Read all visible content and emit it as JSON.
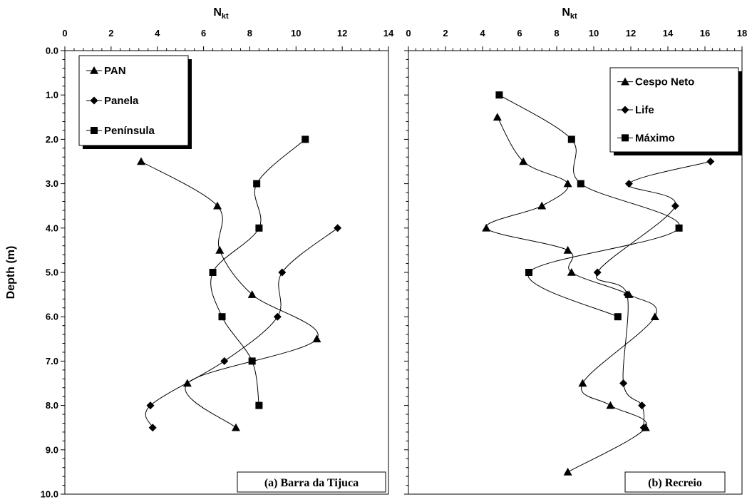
{
  "chart_data": [
    {
      "type": "line",
      "panel_label": "(a)  Barra da Tijuca",
      "x_axis_title": "N",
      "x_axis_title_sub": "kt",
      "y_axis_title": "Depth (m)",
      "xlim": [
        0,
        14
      ],
      "ylim": [
        0,
        10
      ],
      "x_ticks": [
        "0",
        "2",
        "4",
        "6",
        "8",
        "10",
        "12",
        "14"
      ],
      "y_ticks": [
        "0.0",
        "1.0",
        "2.0",
        "3.0",
        "4.0",
        "5.0",
        "6.0",
        "7.0",
        "8.0",
        "9.0",
        "10.0"
      ],
      "x_axis_position": "top",
      "y_inverted": true,
      "legend_position": "top-left",
      "series": [
        {
          "name": "PAN",
          "marker": "triangle",
          "points": [
            [
              3.3,
              2.5
            ],
            [
              6.6,
              3.5
            ],
            [
              6.7,
              4.5
            ],
            [
              8.1,
              5.5
            ],
            [
              10.9,
              6.5
            ],
            [
              5.3,
              7.5
            ],
            [
              7.4,
              8.5
            ]
          ]
        },
        {
          "name": "Panela",
          "marker": "diamond",
          "points": [
            [
              11.8,
              4.0
            ],
            [
              9.4,
              5.0
            ],
            [
              9.2,
              6.0
            ],
            [
              6.9,
              7.0
            ],
            [
              3.7,
              8.0
            ],
            [
              3.8,
              8.5
            ]
          ]
        },
        {
          "name": "Península",
          "marker": "square",
          "points": [
            [
              10.4,
              2.0
            ],
            [
              8.3,
              3.0
            ],
            [
              8.4,
              4.0
            ],
            [
              6.4,
              5.0
            ],
            [
              6.8,
              6.0
            ],
            [
              8.1,
              7.0
            ],
            [
              8.4,
              8.0
            ]
          ]
        }
      ]
    },
    {
      "type": "line",
      "panel_label": "(b)  Recreio",
      "x_axis_title": "N",
      "x_axis_title_sub": "kt",
      "y_axis_title": "",
      "xlim": [
        0,
        18
      ],
      "ylim": [
        0,
        10
      ],
      "x_ticks": [
        "0",
        "2",
        "4",
        "6",
        "8",
        "10",
        "12",
        "14",
        "16",
        "18"
      ],
      "y_ticks": [],
      "x_axis_position": "top",
      "y_inverted": true,
      "legend_position": "top-right",
      "series": [
        {
          "name": "Cespo Neto",
          "marker": "triangle",
          "points": [
            [
              4.8,
              1.5
            ],
            [
              6.2,
              2.5
            ],
            [
              8.6,
              3.0
            ],
            [
              7.2,
              3.5
            ],
            [
              4.2,
              4.0
            ],
            [
              8.6,
              4.5
            ],
            [
              8.8,
              5.0
            ],
            [
              11.9,
              5.5
            ],
            [
              13.3,
              6.0
            ],
            [
              9.4,
              7.5
            ],
            [
              10.9,
              8.0
            ],
            [
              12.8,
              8.5
            ],
            [
              8.6,
              9.5
            ]
          ]
        },
        {
          "name": "Life",
          "marker": "diamond",
          "points": [
            [
              16.3,
              2.5
            ],
            [
              11.9,
              3.0
            ],
            [
              14.4,
              3.5
            ],
            [
              10.2,
              5.0
            ],
            [
              11.8,
              5.5
            ],
            [
              11.6,
              7.5
            ],
            [
              12.6,
              8.0
            ],
            [
              12.7,
              8.5
            ]
          ]
        },
        {
          "name": "Máximo",
          "marker": "square",
          "points": [
            [
              4.9,
              1.0
            ],
            [
              8.8,
              2.0
            ],
            [
              9.3,
              3.0
            ],
            [
              14.6,
              4.0
            ],
            [
              6.5,
              5.0
            ],
            [
              11.3,
              6.0
            ]
          ]
        }
      ]
    }
  ]
}
